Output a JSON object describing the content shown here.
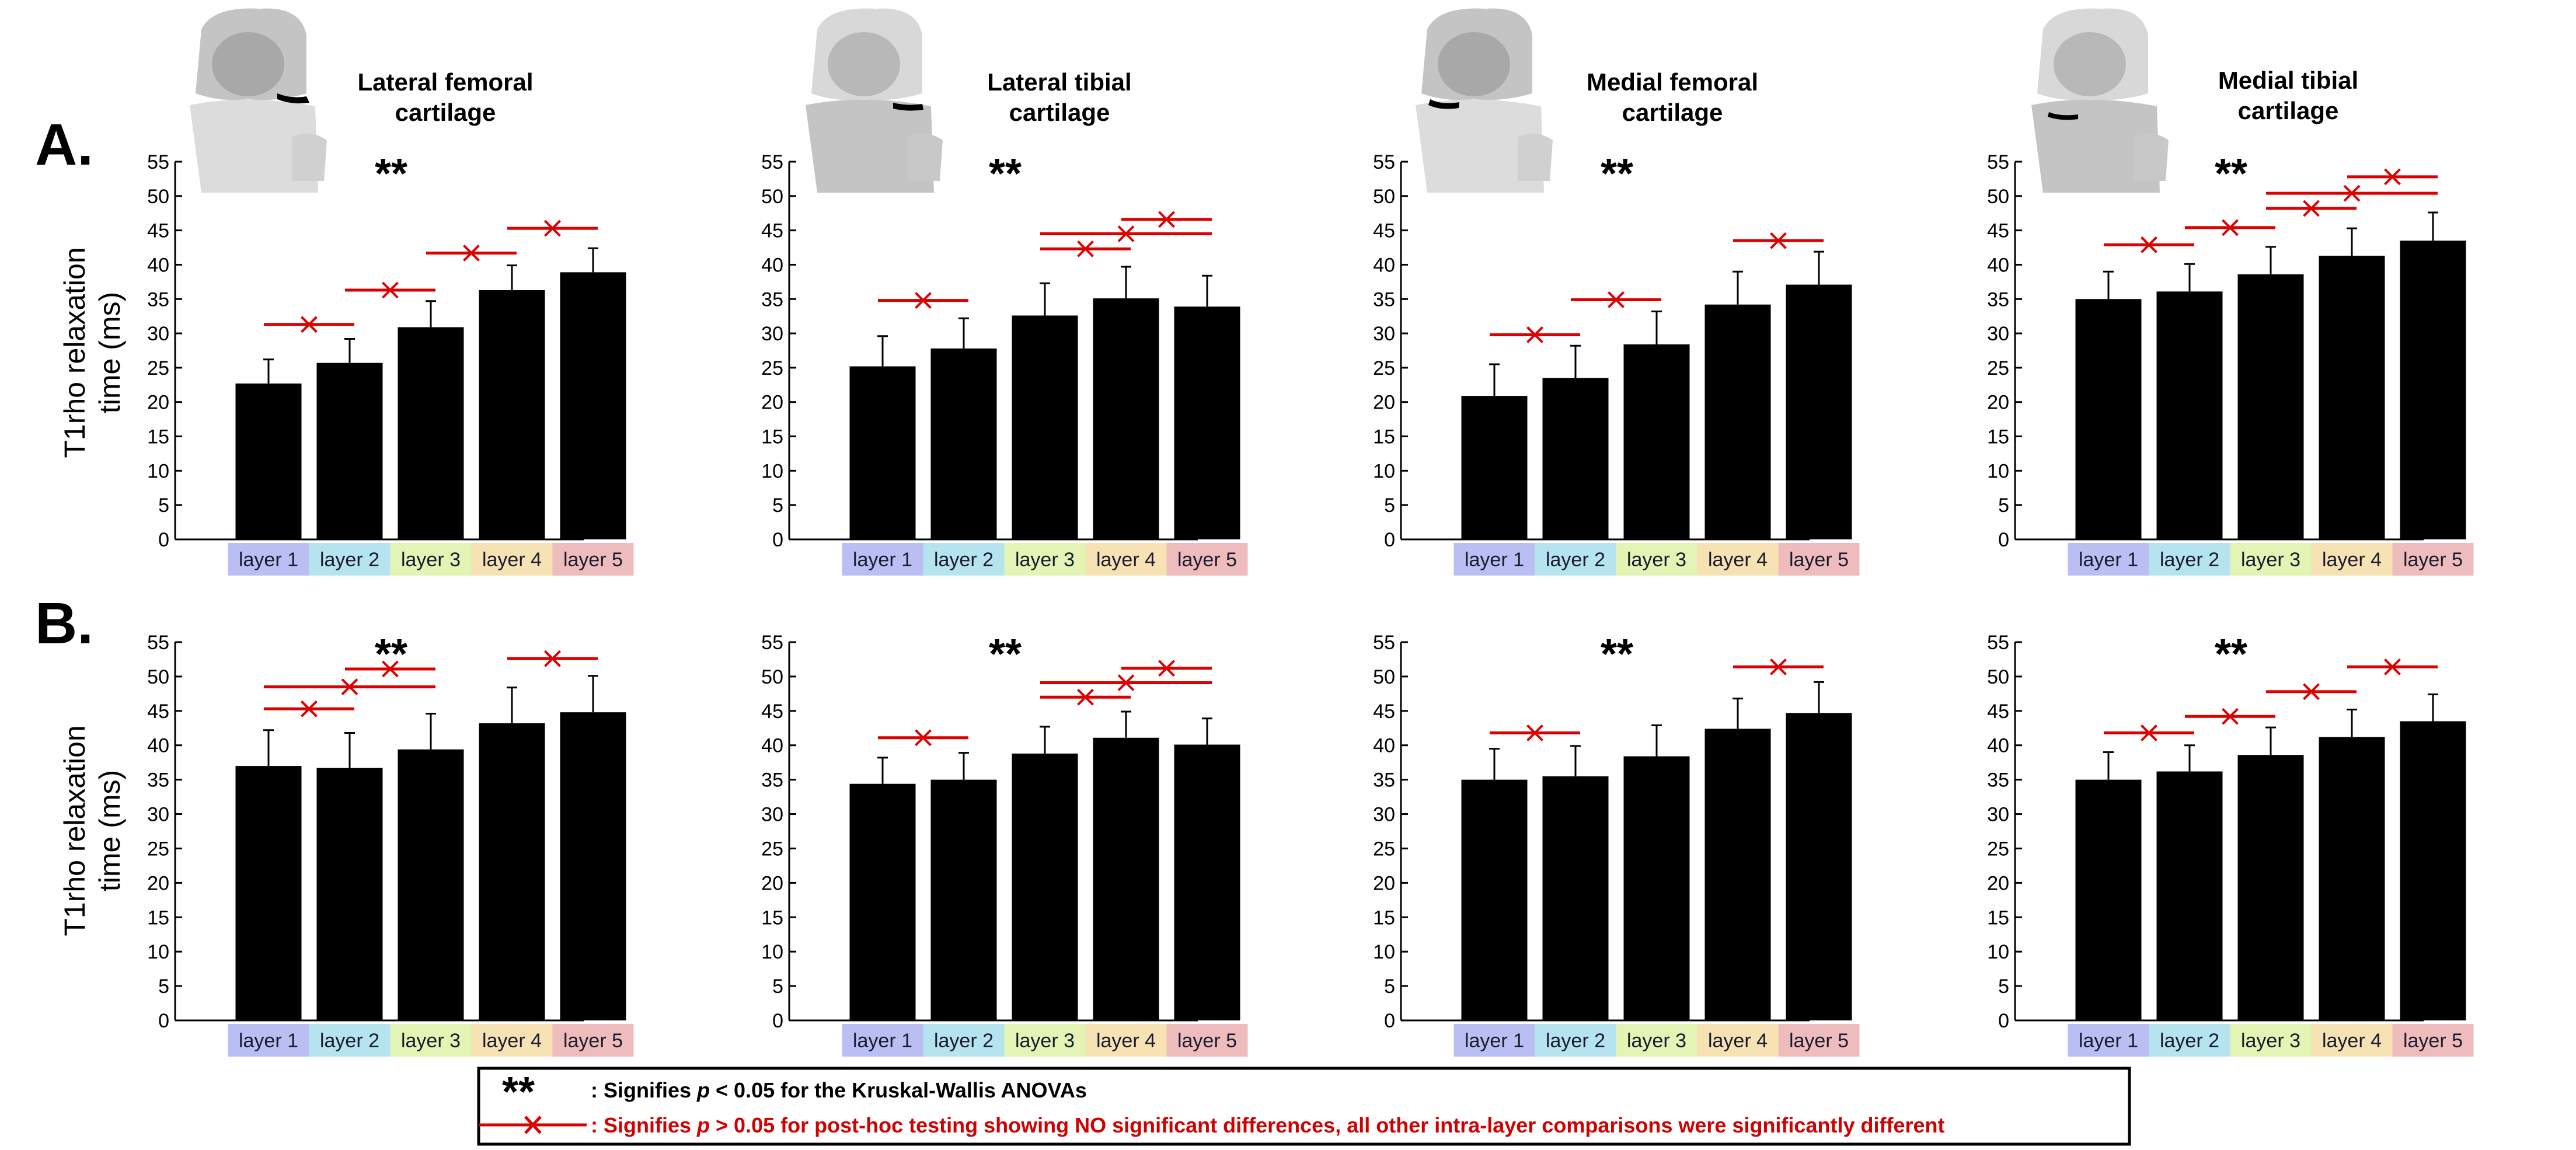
{
  "row_labels": [
    "A.",
    "B."
  ],
  "ylabel_line1": "T1rho relaxation",
  "ylabel_line2": "time (ms)",
  "titles": [
    [
      "Lateral femoral",
      "cartilage"
    ],
    [
      "Lateral tibial",
      "cartilage"
    ],
    [
      "Medial femoral",
      "cartilage"
    ],
    [
      "Medial tibial",
      "cartilage"
    ]
  ],
  "sig_marker": "**",
  "legend": {
    "marker": "**",
    "text1_pre": ": Signifies ",
    "text1_p": "p",
    "text1_post": " < 0.05 for the Kruskal-Wallis ANOVAs",
    "text2_pre": ": Signifies ",
    "text2_p": "p",
    "text2_post": " > 0.05 for post-hoc testing showing NO significant differences, all other intra-layer comparisons were significantly different"
  },
  "colors": {
    "bar": "#000000",
    "nonsig": "#dd0000",
    "layer_bg": [
      "#b9bff2",
      "#b5e4ef",
      "#e4f4b5",
      "#f7e2b4",
      "#efbcbe"
    ]
  },
  "chart_data": [
    {
      "type": "bar",
      "row": "A",
      "title": "Lateral femoral cartilage",
      "categories": [
        "layer 1",
        "layer 2",
        "layer 3",
        "layer 4",
        "layer 5"
      ],
      "values": [
        22.7,
        25.7,
        30.9,
        36.3,
        38.9
      ],
      "errors": [
        3.5,
        3.5,
        3.8,
        3.6,
        3.5
      ],
      "ylabel": "T1rho relaxation time (ms)",
      "ylim": [
        0,
        55
      ],
      "yticks": [
        0,
        5,
        10,
        15,
        20,
        25,
        30,
        35,
        40,
        45,
        50,
        55
      ],
      "nonsig_pairs": [
        [
          1,
          2,
          31.3
        ],
        [
          2,
          3,
          36.3
        ],
        [
          3,
          4,
          41.7
        ],
        [
          4,
          5,
          45.3
        ]
      ]
    },
    {
      "type": "bar",
      "row": "A",
      "title": "Lateral tibial cartilage",
      "categories": [
        "layer 1",
        "layer 2",
        "layer 3",
        "layer 4",
        "layer 5"
      ],
      "values": [
        25.2,
        27.8,
        32.6,
        35.1,
        33.9
      ],
      "errors": [
        4.4,
        4.4,
        4.7,
        4.6,
        4.5
      ],
      "ylabel": "T1rho relaxation time (ms)",
      "ylim": [
        0,
        55
      ],
      "yticks": [
        0,
        5,
        10,
        15,
        20,
        25,
        30,
        35,
        40,
        45,
        50,
        55
      ],
      "nonsig_pairs": [
        [
          1,
          2,
          34.8
        ],
        [
          3,
          4,
          42.3
        ],
        [
          3,
          5,
          44.5
        ],
        [
          4,
          5,
          46.6
        ]
      ]
    },
    {
      "type": "bar",
      "row": "A",
      "title": "Medial femoral cartilage",
      "categories": [
        "layer 1",
        "layer 2",
        "layer 3",
        "layer 4",
        "layer 5"
      ],
      "values": [
        20.9,
        23.5,
        28.4,
        34.2,
        37.1
      ],
      "errors": [
        4.6,
        4.7,
        4.8,
        4.8,
        4.8
      ],
      "ylabel": "T1rho relaxation time (ms)",
      "ylim": [
        0,
        55
      ],
      "yticks": [
        0,
        5,
        10,
        15,
        20,
        25,
        30,
        35,
        40,
        45,
        50,
        55
      ],
      "nonsig_pairs": [
        [
          1,
          2,
          29.8
        ],
        [
          2,
          3,
          34.9
        ],
        [
          4,
          5,
          43.5
        ]
      ]
    },
    {
      "type": "bar",
      "row": "A",
      "title": "Medial tibial cartilage",
      "categories": [
        "layer 1",
        "layer 2",
        "layer 3",
        "layer 4",
        "layer 5"
      ],
      "values": [
        35.0,
        36.1,
        38.6,
        41.3,
        43.5
      ],
      "errors": [
        4.0,
        4.0,
        4.0,
        4.0,
        4.1
      ],
      "ylabel": "T1rho relaxation time (ms)",
      "ylim": [
        0,
        55
      ],
      "yticks": [
        0,
        5,
        10,
        15,
        20,
        25,
        30,
        35,
        40,
        45,
        50,
        55
      ],
      "nonsig_pairs": [
        [
          1,
          2,
          42.9
        ],
        [
          2,
          3,
          45.4
        ],
        [
          3,
          4,
          48.2
        ],
        [
          3,
          5,
          50.4
        ],
        [
          4,
          5,
          52.8
        ]
      ]
    },
    {
      "type": "bar",
      "row": "B",
      "title": "Lateral femoral cartilage",
      "categories": [
        "layer 1",
        "layer 2",
        "layer 3",
        "layer 4",
        "layer 5"
      ],
      "values": [
        37.0,
        36.7,
        39.4,
        43.2,
        44.8
      ],
      "errors": [
        5.2,
        5.1,
        5.2,
        5.2,
        5.3
      ],
      "ylabel": "T1rho relaxation time (ms)",
      "ylim": [
        0,
        55
      ],
      "yticks": [
        0,
        5,
        10,
        15,
        20,
        25,
        30,
        35,
        40,
        45,
        50,
        55
      ],
      "nonsig_pairs": [
        [
          1,
          2,
          45.3
        ],
        [
          1,
          3,
          48.5
        ],
        [
          2,
          3,
          51.1
        ],
        [
          4,
          5,
          52.6
        ]
      ]
    },
    {
      "type": "bar",
      "row": "B",
      "title": "Lateral tibial cartilage",
      "categories": [
        "layer 1",
        "layer 2",
        "layer 3",
        "layer 4",
        "layer 5"
      ],
      "values": [
        34.4,
        35.0,
        38.8,
        41.1,
        40.1
      ],
      "errors": [
        3.8,
        3.9,
        3.9,
        3.8,
        3.8
      ],
      "ylabel": "T1rho relaxation time (ms)",
      "ylim": [
        0,
        55
      ],
      "yticks": [
        0,
        5,
        10,
        15,
        20,
        25,
        30,
        35,
        40,
        45,
        50,
        55
      ],
      "nonsig_pairs": [
        [
          1,
          2,
          41.1
        ],
        [
          3,
          4,
          47.0
        ],
        [
          3,
          5,
          49.1
        ],
        [
          4,
          5,
          51.2
        ]
      ]
    },
    {
      "type": "bar",
      "row": "B",
      "title": "Medial femoral cartilage",
      "categories": [
        "layer 1",
        "layer 2",
        "layer 3",
        "layer 4",
        "layer 5"
      ],
      "values": [
        35.0,
        35.5,
        38.4,
        42.4,
        44.7
      ],
      "errors": [
        4.5,
        4.4,
        4.5,
        4.4,
        4.5
      ],
      "ylabel": "T1rho relaxation time (ms)",
      "ylim": [
        0,
        55
      ],
      "yticks": [
        0,
        5,
        10,
        15,
        20,
        25,
        30,
        35,
        40,
        45,
        50,
        55
      ],
      "nonsig_pairs": [
        [
          1,
          2,
          41.8
        ],
        [
          4,
          5,
          51.4
        ]
      ]
    },
    {
      "type": "bar",
      "row": "B",
      "title": "Medial tibial cartilage",
      "categories": [
        "layer 1",
        "layer 2",
        "layer 3",
        "layer 4",
        "layer 5"
      ],
      "values": [
        35.0,
        36.2,
        38.6,
        41.2,
        43.5
      ],
      "errors": [
        4.0,
        3.8,
        4.0,
        4.0,
        3.9
      ],
      "ylabel": "T1rho relaxation time (ms)",
      "ylim": [
        0,
        55
      ],
      "yticks": [
        0,
        5,
        10,
        15,
        20,
        25,
        30,
        35,
        40,
        45,
        50,
        55
      ],
      "nonsig_pairs": [
        [
          1,
          2,
          41.8
        ],
        [
          2,
          3,
          44.2
        ],
        [
          3,
          4,
          47.8
        ],
        [
          4,
          5,
          51.4
        ]
      ]
    }
  ]
}
